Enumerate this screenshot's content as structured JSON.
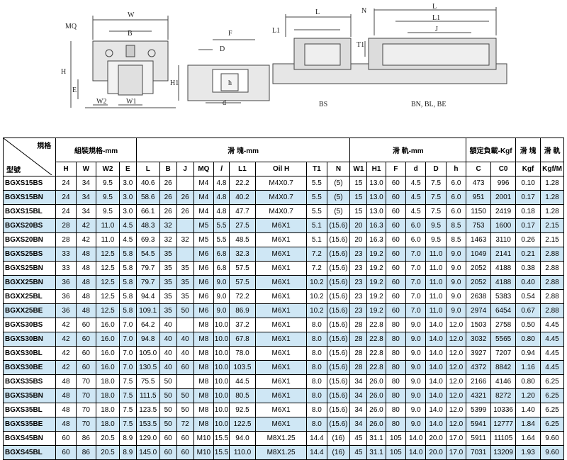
{
  "drawing": {
    "left_labels": [
      "W",
      "MQ",
      "B",
      "H",
      "E",
      "W2",
      "W1"
    ],
    "middle_labels": [
      "F",
      "D",
      "H1",
      "h",
      "d"
    ],
    "bs_labels": [
      "L1",
      "L"
    ],
    "bs_caption": "BS",
    "right_labels": [
      "N",
      "L",
      "L1",
      "J",
      "T1"
    ],
    "right_caption": "BN, BL, BE"
  },
  "table": {
    "corner_top": "規格",
    "corner_bottom": "型號",
    "group_headers": [
      "組裝規格-mm",
      "滑 塊-mm",
      "滑 軌-mm",
      "額定負載-Kgf",
      "滑 塊",
      "滑 軌"
    ],
    "columns": [
      "H",
      "W",
      "W2",
      "E",
      "L",
      "B",
      "J",
      "MQ",
      "l",
      "L1",
      "Oil H",
      "T1",
      "N",
      "W1",
      "H1",
      "F",
      "d",
      "D",
      "h",
      "C",
      "C0",
      "Kgf",
      "Kgf/M"
    ],
    "rows": [
      [
        "BGXS15BS",
        "24",
        "34",
        "9.5",
        "3.0",
        "40.6",
        "26",
        "",
        "M4",
        "4.8",
        "22.2",
        "M4X0.7",
        "5.5",
        "(5)",
        "15",
        "13.0",
        "60",
        "4.5",
        "7.5",
        "6.0",
        "473",
        "996",
        "0.10",
        "1.28"
      ],
      [
        "BGXS15BN",
        "24",
        "34",
        "9.5",
        "3.0",
        "58.6",
        "26",
        "26",
        "M4",
        "4.8",
        "40.2",
        "M4X0.7",
        "5.5",
        "(5)",
        "15",
        "13.0",
        "60",
        "4.5",
        "7.5",
        "6.0",
        "951",
        "2001",
        "0.17",
        "1.28"
      ],
      [
        "BGXS15BL",
        "24",
        "34",
        "9.5",
        "3.0",
        "66.1",
        "26",
        "26",
        "M4",
        "4.8",
        "47.7",
        "M4X0.7",
        "5.5",
        "(5)",
        "15",
        "13.0",
        "60",
        "4.5",
        "7.5",
        "6.0",
        "1150",
        "2419",
        "0.18",
        "1.28"
      ],
      [
        "BGXS20BS",
        "28",
        "42",
        "11.0",
        "4.5",
        "48.3",
        "32",
        "",
        "M5",
        "5.5",
        "27.5",
        "M6X1",
        "5.1",
        "(15.6)",
        "20",
        "16.3",
        "60",
        "6.0",
        "9.5",
        "8.5",
        "753",
        "1600",
        "0.17",
        "2.15"
      ],
      [
        "BGXS20BN",
        "28",
        "42",
        "11.0",
        "4.5",
        "69.3",
        "32",
        "32",
        "M5",
        "5.5",
        "48.5",
        "M6X1",
        "5.1",
        "(15.6)",
        "20",
        "16.3",
        "60",
        "6.0",
        "9.5",
        "8.5",
        "1463",
        "3110",
        "0.26",
        "2.15"
      ],
      [
        "BGXS25BS",
        "33",
        "48",
        "12.5",
        "5.8",
        "54.5",
        "35",
        "",
        "M6",
        "6.8",
        "32.3",
        "M6X1",
        "7.2",
        "(15.6)",
        "23",
        "19.2",
        "60",
        "7.0",
        "11.0",
        "9.0",
        "1049",
        "2141",
        "0.21",
        "2.88"
      ],
      [
        "BGXS25BN",
        "33",
        "48",
        "12.5",
        "5.8",
        "79.7",
        "35",
        "35",
        "M6",
        "6.8",
        "57.5",
        "M6X1",
        "7.2",
        "(15.6)",
        "23",
        "19.2",
        "60",
        "7.0",
        "11.0",
        "9.0",
        "2052",
        "4188",
        "0.38",
        "2.88"
      ],
      [
        "BGXX25BN",
        "36",
        "48",
        "12.5",
        "5.8",
        "79.7",
        "35",
        "35",
        "M6",
        "9.0",
        "57.5",
        "M6X1",
        "10.2",
        "(15.6)",
        "23",
        "19.2",
        "60",
        "7.0",
        "11.0",
        "9.0",
        "2052",
        "4188",
        "0.40",
        "2.88"
      ],
      [
        "BGXX25BL",
        "36",
        "48",
        "12.5",
        "5.8",
        "94.4",
        "35",
        "35",
        "M6",
        "9.0",
        "72.2",
        "M6X1",
        "10.2",
        "(15.6)",
        "23",
        "19.2",
        "60",
        "7.0",
        "11.0",
        "9.0",
        "2638",
        "5383",
        "0.54",
        "2.88"
      ],
      [
        "BGXX25BE",
        "36",
        "48",
        "12.5",
        "5.8",
        "109.1",
        "35",
        "50",
        "M6",
        "9.0",
        "86.9",
        "M6X1",
        "10.2",
        "(15.6)",
        "23",
        "19.2",
        "60",
        "7.0",
        "11.0",
        "9.0",
        "2974",
        "6454",
        "0.67",
        "2.88"
      ],
      [
        "BGXS30BS",
        "42",
        "60",
        "16.0",
        "7.0",
        "64.2",
        "40",
        "",
        "M8",
        "10.0",
        "37.2",
        "M6X1",
        "8.0",
        "(15.6)",
        "28",
        "22.8",
        "80",
        "9.0",
        "14.0",
        "12.0",
        "1503",
        "2758",
        "0.50",
        "4.45"
      ],
      [
        "BGXS30BN",
        "42",
        "60",
        "16.0",
        "7.0",
        "94.8",
        "40",
        "40",
        "M8",
        "10.0",
        "67.8",
        "M6X1",
        "8.0",
        "(15.6)",
        "28",
        "22.8",
        "80",
        "9.0",
        "14.0",
        "12.0",
        "3032",
        "5565",
        "0.80",
        "4.45"
      ],
      [
        "BGXS30BL",
        "42",
        "60",
        "16.0",
        "7.0",
        "105.0",
        "40",
        "40",
        "M8",
        "10.0",
        "78.0",
        "M6X1",
        "8.0",
        "(15.6)",
        "28",
        "22.8",
        "80",
        "9.0",
        "14.0",
        "12.0",
        "3927",
        "7207",
        "0.94",
        "4.45"
      ],
      [
        "BGXS30BE",
        "42",
        "60",
        "16.0",
        "7.0",
        "130.5",
        "40",
        "60",
        "M8",
        "10.0",
        "103.5",
        "M6X1",
        "8.0",
        "(15.6)",
        "28",
        "22.8",
        "80",
        "9.0",
        "14.0",
        "12.0",
        "4372",
        "8842",
        "1.16",
        "4.45"
      ],
      [
        "BGXS35BS",
        "48",
        "70",
        "18.0",
        "7.5",
        "75.5",
        "50",
        "",
        "M8",
        "10.0",
        "44.5",
        "M6X1",
        "8.0",
        "(15.6)",
        "34",
        "26.0",
        "80",
        "9.0",
        "14.0",
        "12.0",
        "2166",
        "4146",
        "0.80",
        "6.25"
      ],
      [
        "BGXS35BN",
        "48",
        "70",
        "18.0",
        "7.5",
        "111.5",
        "50",
        "50",
        "M8",
        "10.0",
        "80.5",
        "M6X1",
        "8.0",
        "(15.6)",
        "34",
        "26.0",
        "80",
        "9.0",
        "14.0",
        "12.0",
        "4321",
        "8272",
        "1.20",
        "6.25"
      ],
      [
        "BGXS35BL",
        "48",
        "70",
        "18.0",
        "7.5",
        "123.5",
        "50",
        "50",
        "M8",
        "10.0",
        "92.5",
        "M6X1",
        "8.0",
        "(15.6)",
        "34",
        "26.0",
        "80",
        "9.0",
        "14.0",
        "12.0",
        "5399",
        "10336",
        "1.40",
        "6.25"
      ],
      [
        "BGXS35BE",
        "48",
        "70",
        "18.0",
        "7.5",
        "153.5",
        "50",
        "72",
        "M8",
        "10.0",
        "122.5",
        "M6X1",
        "8.0",
        "(15.6)",
        "34",
        "26.0",
        "80",
        "9.0",
        "14.0",
        "12.0",
        "5941",
        "12777",
        "1.84",
        "6.25"
      ],
      [
        "BGXS45BN",
        "60",
        "86",
        "20.5",
        "8.9",
        "129.0",
        "60",
        "60",
        "M10",
        "15.5",
        "94.0",
        "M8X1.25",
        "14.4",
        "(16)",
        "45",
        "31.1",
        "105",
        "14.0",
        "20.0",
        "17.0",
        "5911",
        "11105",
        "1.64",
        "9.60"
      ],
      [
        "BGXS45BL",
        "60",
        "86",
        "20.5",
        "8.9",
        "145.0",
        "60",
        "60",
        "M10",
        "15.5",
        "110.0",
        "M8X1.25",
        "14.4",
        "(16)",
        "45",
        "31.1",
        "105",
        "14.0",
        "20.0",
        "17.0",
        "7031",
        "13209",
        "1.93",
        "9.60"
      ]
    ],
    "highlight_color": "#cfe7f5"
  }
}
